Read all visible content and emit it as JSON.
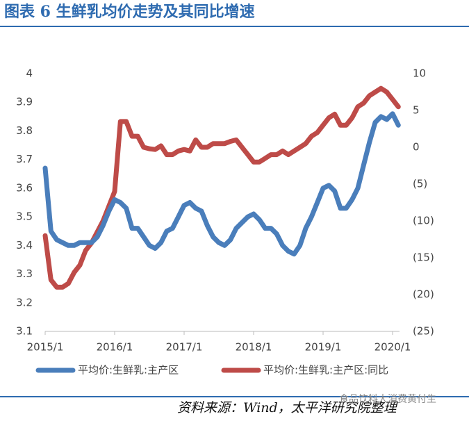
{
  "chart_data": {
    "type": "line",
    "title": "图表 6 生鲜乳均价走势及其同比增速",
    "source": "资料来源：Wind，太平洋研究院整理",
    "watermark": "食品饮料大消费黄付生",
    "categories": [
      "2015/1",
      null,
      null,
      null,
      null,
      null,
      null,
      null,
      null,
      null,
      null,
      null,
      "2016/1",
      null,
      null,
      null,
      null,
      null,
      null,
      null,
      null,
      null,
      null,
      null,
      "2017/1",
      null,
      null,
      null,
      null,
      null,
      null,
      null,
      null,
      null,
      null,
      null,
      "2018/1",
      null,
      null,
      null,
      null,
      null,
      null,
      null,
      null,
      null,
      null,
      null,
      "2019/1",
      null,
      null,
      null,
      null,
      null,
      null,
      null,
      null,
      null,
      null,
      null,
      "2020/1",
      null
    ],
    "series": [
      {
        "name": "平均价:生鲜乳:主产区",
        "color": "#4a7ebb",
        "axis": "y",
        "values": [
          3.67,
          3.45,
          3.42,
          3.41,
          3.4,
          3.4,
          3.41,
          3.41,
          3.41,
          3.43,
          3.47,
          3.52,
          3.56,
          3.55,
          3.53,
          3.46,
          3.46,
          3.43,
          3.4,
          3.39,
          3.41,
          3.45,
          3.46,
          3.5,
          3.54,
          3.55,
          3.53,
          3.52,
          3.47,
          3.43,
          3.41,
          3.4,
          3.42,
          3.46,
          3.48,
          3.5,
          3.51,
          3.49,
          3.46,
          3.46,
          3.44,
          3.4,
          3.38,
          3.37,
          3.4,
          3.46,
          3.5,
          3.55,
          3.6,
          3.61,
          3.59,
          3.53,
          3.53,
          3.56,
          3.6,
          3.68,
          3.76,
          3.83,
          3.85,
          3.84,
          3.86,
          3.82
        ]
      },
      {
        "name": "平均价:生鲜乳:主产区:同比",
        "color": "#be4b48",
        "axis": "y2",
        "values": [
          -12,
          -18,
          -19,
          -19,
          -18.5,
          -17,
          -16,
          -14,
          -13,
          -11.5,
          -10,
          -8,
          -6,
          3.5,
          3.5,
          1.5,
          1.5,
          0,
          -0.2,
          -0.3,
          0.2,
          -1,
          -1,
          -0.5,
          -0.3,
          -0.5,
          1,
          0,
          0,
          0.5,
          0.5,
          0.5,
          0.8,
          1,
          0,
          -1,
          -2,
          -2,
          -1.5,
          -1,
          -1,
          -0.5,
          -1,
          -0.5,
          0,
          0.5,
          1.5,
          2,
          3,
          4,
          4.5,
          3,
          3,
          4,
          5.5,
          6,
          7,
          7.5,
          8,
          7.5,
          6.5,
          5.5
        ]
      }
    ],
    "ylim": [
      3.1,
      4
    ],
    "yticks": [
      3.1,
      3.2,
      3.3,
      3.4,
      3.5,
      3.6,
      3.7,
      3.8,
      3.9,
      4
    ],
    "y2lim": [
      -25,
      10
    ],
    "y2ticks": [
      {
        "value": -25,
        "label": "(25)"
      },
      {
        "value": -20,
        "label": "(20)"
      },
      {
        "value": -15,
        "label": "(15)"
      },
      {
        "value": -10,
        "label": "(10)"
      },
      {
        "value": -5,
        "label": "(5)"
      },
      0,
      5,
      10
    ],
    "grid": false,
    "legend": "bottom"
  }
}
